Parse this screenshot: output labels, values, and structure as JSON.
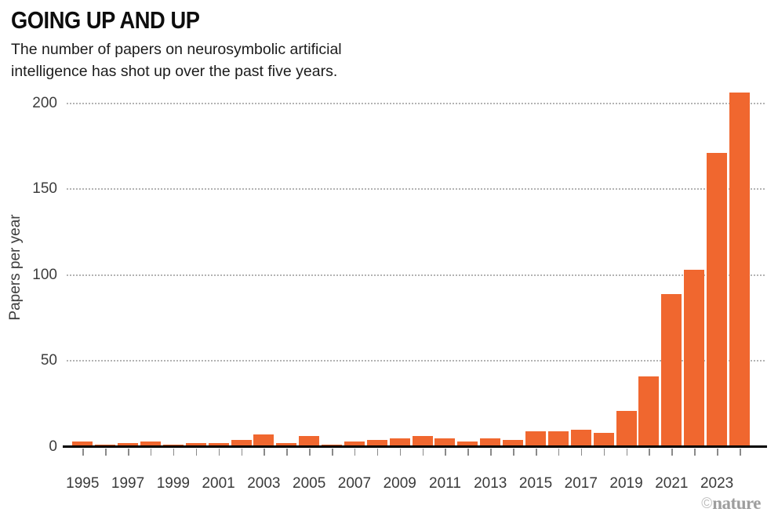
{
  "header": {
    "title": "GOING UP AND UP",
    "subtitle_lines": [
      "The number of papers on neurosymbolic artificial",
      "intelligence has shot up over the past five years."
    ]
  },
  "chart_data": {
    "type": "bar",
    "title": "GOING UP AND UP",
    "subtitle": "The number of papers on neurosymbolic artificial intelligence has shot up over the past five years.",
    "categories": [
      1995,
      1996,
      1997,
      1998,
      1999,
      2000,
      2001,
      2002,
      2003,
      2004,
      2005,
      2006,
      2007,
      2008,
      2009,
      2010,
      2011,
      2012,
      2013,
      2014,
      2015,
      2016,
      2017,
      2018,
      2019,
      2020,
      2021,
      2022,
      2023,
      2024
    ],
    "values": [
      3,
      1,
      2,
      3,
      1,
      2,
      2,
      4,
      7,
      2,
      6,
      1,
      3,
      4,
      5,
      6,
      5,
      3,
      5,
      4,
      9,
      9,
      10,
      8,
      21,
      41,
      89,
      103,
      171,
      206
    ],
    "xlabel": "",
    "ylabel": "Papers per year",
    "ylim": [
      0,
      200
    ],
    "yticks": [
      0,
      50,
      100,
      150,
      200
    ],
    "xtick_labels": [
      "1995",
      "1997",
      "1999",
      "2001",
      "2003",
      "2005",
      "2007",
      "2009",
      "2011",
      "2013",
      "2015",
      "2017",
      "2019",
      "2021",
      "2023"
    ],
    "grid": "horizontal dotted at 50,100,150,200",
    "legend_position": "none",
    "bar_color": "#F0672F"
  },
  "credit": {
    "symbol": "©",
    "text": "nature"
  },
  "colors": {
    "bar": "#F0672F",
    "background": "#ffffff",
    "axis_line": "#000000",
    "gridline": "#b3b3b3",
    "tick_text": "#3a3a3a",
    "credit_text": "#9e9e9e"
  }
}
